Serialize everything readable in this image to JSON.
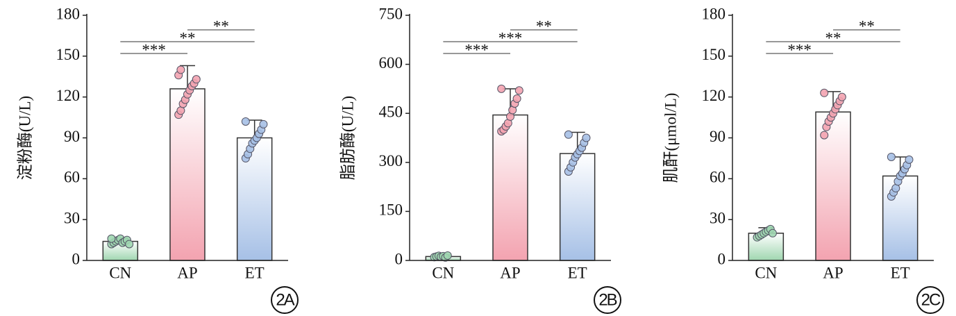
{
  "chart_data": [
    {
      "type": "bar",
      "ylabel": "淀粉酶(U/L)",
      "panel_label": "2A",
      "categories": [
        "CN",
        "AP",
        "ET"
      ],
      "values": [
        14,
        126,
        90
      ],
      "errors": [
        2,
        17,
        13
      ],
      "colors": [
        "#9fd6b0",
        "#f3a3b0",
        "#a6c0e6"
      ],
      "points": [
        [
          12,
          13,
          14,
          15,
          16,
          13,
          14,
          15,
          12,
          16
        ],
        [
          107,
          110,
          115,
          118,
          122,
          125,
          128,
          130,
          133,
          136,
          140
        ],
        [
          75,
          78,
          82,
          86,
          88,
          90,
          93,
          96,
          100,
          102
        ]
      ],
      "significance": [
        "***",
        "**",
        "**"
      ],
      "ylim": [
        0,
        180
      ],
      "yticks": [
        0,
        30,
        60,
        90,
        120,
        150,
        180
      ]
    },
    {
      "type": "bar",
      "ylabel": "脂肪酶(U/L)",
      "panel_label": "2B",
      "categories": [
        "CN",
        "AP",
        "ET"
      ],
      "values": [
        12,
        445,
        327
      ],
      "errors": [
        5,
        80,
        65
      ],
      "colors": [
        "#9fd6b0",
        "#f3a3b0",
        "#a6c0e6"
      ],
      "points": [
        [
          10,
          12,
          14,
          11,
          13,
          9,
          15
        ],
        [
          395,
          400,
          410,
          420,
          440,
          460,
          480,
          495,
          520,
          525
        ],
        [
          272,
          285,
          300,
          315,
          325,
          335,
          345,
          360,
          375,
          385
        ]
      ],
      "significance": [
        "***",
        "***",
        "**"
      ],
      "ylim": [
        0,
        750
      ],
      "yticks": [
        0,
        150,
        300,
        450,
        600,
        750
      ]
    },
    {
      "type": "bar",
      "ylabel": "肌酐(μmol/L)",
      "panel_label": "2C",
      "categories": [
        "CN",
        "AP",
        "ET"
      ],
      "values": [
        20,
        109,
        62
      ],
      "errors": [
        4,
        15,
        14
      ],
      "colors": [
        "#9fd6b0",
        "#f3a3b0",
        "#a6c0e6"
      ],
      "points": [
        [
          17,
          18,
          19,
          20,
          21,
          22,
          23,
          20
        ],
        [
          92,
          98,
          102,
          105,
          108,
          111,
          114,
          117,
          120,
          123
        ],
        [
          47,
          50,
          53,
          58,
          62,
          64,
          67,
          70,
          74,
          76
        ]
      ],
      "significance": [
        "***",
        "**",
        "**"
      ],
      "ylim": [
        0,
        180
      ],
      "yticks": [
        0,
        30,
        60,
        90,
        120,
        150,
        180
      ]
    }
  ]
}
